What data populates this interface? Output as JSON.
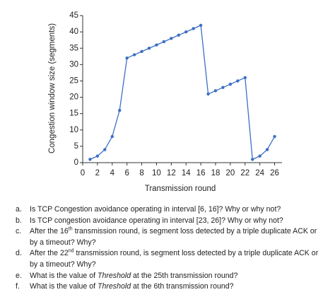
{
  "chart_data": {
    "type": "line",
    "xlabel": "Transmission round",
    "ylabel": "Congestion window size (segments)",
    "x": [
      1,
      2,
      3,
      4,
      5,
      6,
      7,
      8,
      9,
      10,
      11,
      12,
      13,
      14,
      15,
      16,
      17,
      18,
      19,
      20,
      21,
      22,
      23,
      24,
      25,
      26
    ],
    "values": [
      1,
      2,
      4,
      8,
      16,
      32,
      33,
      34,
      35,
      36,
      37,
      38,
      39,
      40,
      41,
      42,
      21,
      22,
      23,
      24,
      25,
      26,
      1,
      2,
      4,
      8
    ],
    "color": "#3b6fc6",
    "xlim": [
      0,
      27
    ],
    "xticks": [
      0,
      2,
      4,
      6,
      8,
      10,
      12,
      14,
      16,
      18,
      20,
      22,
      24,
      26
    ],
    "ylim": [
      0,
      45
    ],
    "yticks": [
      0,
      5,
      10,
      15,
      20,
      25,
      30,
      35,
      40,
      45
    ]
  },
  "questions": [
    {
      "marker": "a.",
      "parts": [
        {
          "text": "Is TCP Congestion avoidance operating in interval [6, 16]? Why or why not?"
        }
      ]
    },
    {
      "marker": "b.",
      "parts": [
        {
          "text": "Is TCP congestion avoidance operating in interval [23, 26]? Why or why not?"
        }
      ]
    },
    {
      "marker": "c.",
      "parts": [
        {
          "text": "After the 16"
        },
        {
          "text": "th",
          "style": "sup"
        },
        {
          "text": " transmission round, is segment loss detected by a triple duplicate ACK or by a timeout? Why?"
        }
      ]
    },
    {
      "marker": "d.",
      "parts": [
        {
          "text": "After the 22"
        },
        {
          "text": "nd",
          "style": "sup"
        },
        {
          "text": " transmission round, is segment loss detected by a triple duplicate ACK or by a timeout? Why?"
        }
      ]
    },
    {
      "marker": "e.",
      "parts": [
        {
          "text": "What is the value of "
        },
        {
          "text": "Threshold",
          "style": "italic"
        },
        {
          "text": " at the 25th transmission round?"
        }
      ]
    },
    {
      "marker": "f.",
      "parts": [
        {
          "text": "What is the value of "
        },
        {
          "text": "Threshold",
          "style": "italic"
        },
        {
          "text": " at the 6th transmission round?"
        }
      ]
    }
  ]
}
